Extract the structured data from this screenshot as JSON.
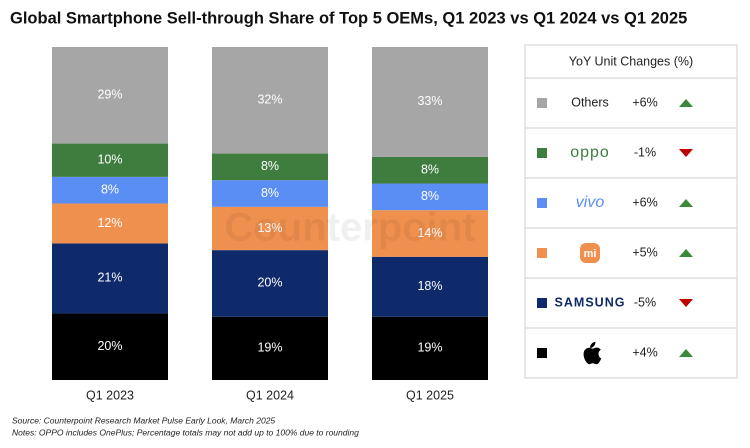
{
  "chart_data": {
    "type": "stacked_bar",
    "title": "Global Smartphone Sell-through Share of Top 5 OEMs, Q1 2023 vs Q1 2024 vs Q1 2025",
    "categories": [
      "Q1 2023",
      "Q1 2024",
      "Q1 2025"
    ],
    "ylim": [
      0,
      100
    ],
    "series": [
      {
        "color": "#000000",
        "values": [
          20,
          19,
          19
        ],
        "value_labels": [
          "20%",
          "19%",
          "19%"
        ],
        "yoy": 4,
        "yoy_label": "+4%"
      },
      {
        "name": "SAMSUNG",
        "color": "#0e2a6b",
        "values": [
          21,
          20,
          18
        ],
        "value_labels": [
          "21%",
          "20%",
          "18%"
        ],
        "yoy": -5,
        "yoy_label": "-5%"
      },
      {
        "name": "mi",
        "color": "#f0904f",
        "values": [
          12,
          13,
          14
        ],
        "value_labels": [
          "12%",
          "13%",
          "14%"
        ],
        "yoy": 5,
        "yoy_label": "+5%"
      },
      {
        "name": "vivo",
        "color": "#5b8ef5",
        "values": [
          8,
          8,
          8
        ],
        "value_labels": [
          "8%",
          "8%",
          "8%"
        ],
        "yoy": 6,
        "yoy_label": "+6%"
      },
      {
        "name": "oppo",
        "color": "#3e7d3e",
        "values": [
          10,
          8,
          8
        ],
        "value_labels": [
          "10%",
          "8%",
          "8%"
        ],
        "yoy": -1,
        "yoy_label": "-1%"
      },
      {
        "name": "Others",
        "color": "#a6a6a6",
        "values": [
          29,
          32,
          33
        ],
        "value_labels": [
          "29%",
          "32%",
          "33%"
        ],
        "yoy": 6,
        "yoy_label": "+6%"
      }
    ],
    "legend_title": "YoY Unit Changes (%)",
    "watermark": "Counterpoint",
    "source": "Source: Counterpoint Research Market Pulse Early Look, March 2025",
    "notes": "Notes: OPPO includes OnePlus; Percentage totals may not add up to 100% due to rounding"
  }
}
